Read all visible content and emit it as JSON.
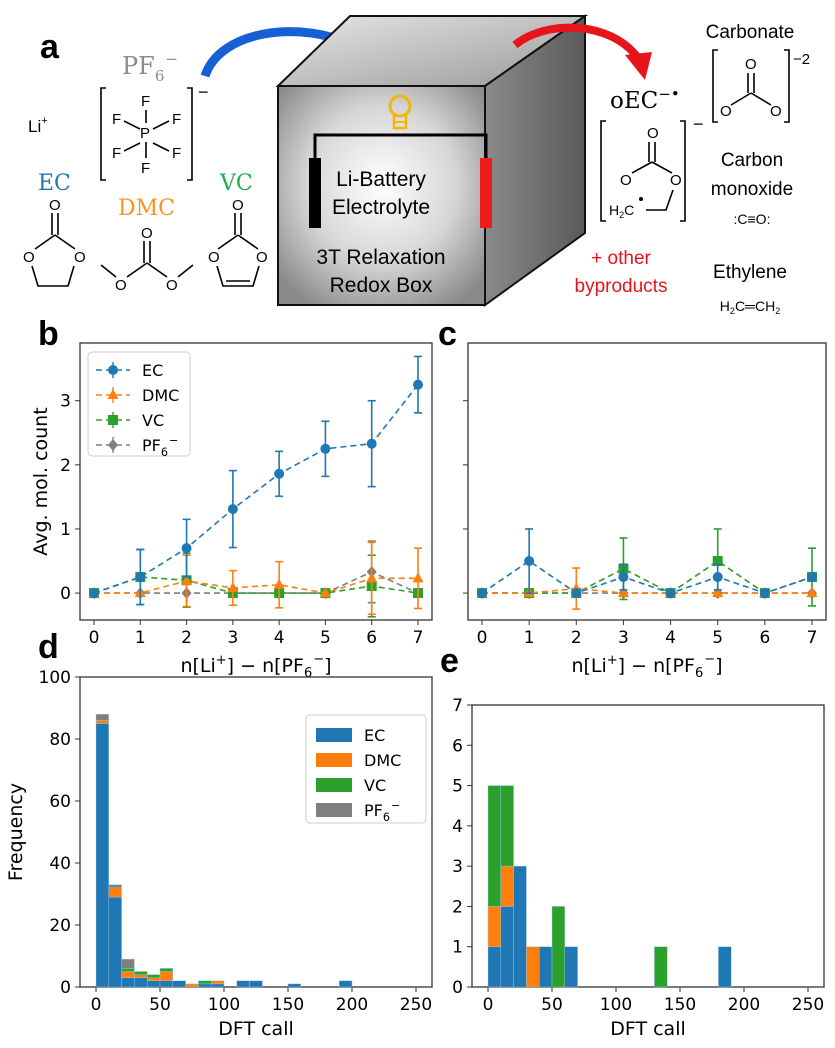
{
  "panel_labels": {
    "a": "a",
    "b": "b",
    "c": "c",
    "d": "d",
    "e": "e"
  },
  "schematic": {
    "pf6_label": {
      "base": "PF",
      "sub": "6",
      "sup": "−"
    },
    "li_label": {
      "base": "Li",
      "sup": "+"
    },
    "pf6_atoms": {
      "center": "P",
      "ligand": "F",
      "charge": "−"
    },
    "ec_label": "EC",
    "dmc_label": "DMC",
    "vc_label": "VC",
    "oxygen": "O",
    "box_line1": "Li-Battery",
    "box_line2": "Electrolyte",
    "box_line3": "3T Relaxation",
    "box_line4": "Redox Box",
    "oec_label": "oEC",
    "oec_sup": "−•",
    "oec_h2c": {
      "base": "H",
      "sub": "2",
      "tail": "C"
    },
    "oec_charge": "−",
    "carbonate_label": "Carbonate",
    "carbonate_charge": "−2",
    "co_line1": "Carbon",
    "co_line2": "monoxide",
    "co_formula": ":C≡O:",
    "other_line1": "+ other",
    "other_line2": "byproducts",
    "ethylene_label": "Ethylene",
    "ethylene_formula": {
      "a": "H",
      "a_sub": "2",
      "b": "C═CH",
      "b_sub": "2"
    },
    "colors": {
      "EC": "#1f77b4",
      "DMC": "#f7941d",
      "VC": "#1fae4b",
      "PF6": "#8c8c8c",
      "blue_arrow": "#1560d6",
      "red_arrow": "#e8141c",
      "battery_red": "#ee1c1c",
      "bulb": "#f2b705"
    }
  },
  "chart_data": [
    {
      "id": "b",
      "type": "line",
      "error_bars": true,
      "x": [
        0,
        1,
        2,
        3,
        4,
        5,
        6,
        7
      ],
      "xticks": [
        "0",
        "1",
        "2",
        "3",
        "4",
        "5",
        "6",
        "7"
      ],
      "yticks": [
        "0",
        "1",
        "2",
        "3"
      ],
      "ylim": [
        -0.42,
        3.9
      ],
      "xlabel": {
        "a": "n[Li",
        "a_sup": "+",
        "b": "] − n[PF",
        "b_sub": "6",
        "b_sup": "−",
        "c": "]"
      },
      "ylabel": "Avg. mol. count",
      "legend": "top-left",
      "series": [
        {
          "name": "EC",
          "marker": "circle",
          "color": "#1f77b4",
          "values": [
            0,
            0.25,
            0.7,
            1.31,
            1.86,
            2.25,
            2.33,
            3.25
          ],
          "errors": [
            0,
            0.43,
            0.45,
            0.6,
            0.35,
            0.43,
            0.67,
            0.44
          ]
        },
        {
          "name": "DMC",
          "marker": "triangle",
          "color": "#ff7f0e",
          "values": [
            0,
            0,
            0.19,
            0.08,
            0.13,
            0,
            0.23,
            0.23
          ],
          "errors": [
            0,
            0,
            0.4,
            0.27,
            0.36,
            0,
            0.56,
            0.47
          ]
        },
        {
          "name": "VC",
          "marker": "square",
          "color": "#2ca02c",
          "values": [
            0,
            0.25,
            0.2,
            0,
            0,
            0,
            0.11,
            0
          ],
          "errors": [
            0,
            0.43,
            0.42,
            0,
            0,
            0,
            0.48,
            0
          ]
        },
        {
          "name": "PF",
          "name_sub": "6",
          "name_sup": "−",
          "marker": "diamond",
          "color": "#7f7f7f",
          "values": [
            0,
            0,
            0,
            0,
            0,
            0,
            0.33,
            0
          ],
          "errors": [
            0,
            0,
            0,
            0,
            0,
            0,
            0.48,
            0
          ]
        }
      ]
    },
    {
      "id": "c",
      "type": "line",
      "error_bars": true,
      "x": [
        0,
        1,
        2,
        3,
        4,
        5,
        6,
        7
      ],
      "xticks": [
        "0",
        "1",
        "2",
        "3",
        "4",
        "5",
        "6",
        "7"
      ],
      "ylim": [
        -0.42,
        3.9
      ],
      "xlabel": {
        "a": "n[Li",
        "a_sup": "+",
        "b": "] − n[PF",
        "b_sub": "6",
        "b_sup": "−",
        "c": "]"
      },
      "series": [
        {
          "name": "EC",
          "marker": "circle",
          "color": "#1f77b4",
          "values": [
            0,
            0.5,
            0,
            0.25,
            0,
            0.25,
            0,
            0.25
          ],
          "errors": [
            0,
            0.5,
            0,
            0.2,
            0,
            0.2,
            0,
            0
          ]
        },
        {
          "name": "DMC",
          "marker": "triangle",
          "color": "#ff7f0e",
          "values": [
            0,
            0,
            0.07,
            0,
            0,
            0,
            0,
            0
          ],
          "errors": [
            0,
            0,
            0.32,
            0,
            0,
            0,
            0,
            0
          ]
        },
        {
          "name": "VC",
          "marker": "square",
          "color": "#2ca02c",
          "values": [
            0,
            0,
            0,
            0.38,
            0,
            0.5,
            0,
            0.25
          ],
          "errors": [
            0,
            0,
            0,
            0.48,
            0,
            0.5,
            0,
            0.45
          ]
        },
        {
          "name": "PF6",
          "marker": "diamond",
          "color": "#7f7f7f",
          "values": [
            0,
            0,
            0,
            0,
            0,
            0,
            0,
            0
          ],
          "errors": [
            0,
            0,
            0,
            0,
            0,
            0,
            0,
            0
          ]
        }
      ]
    },
    {
      "id": "d",
      "type": "bar",
      "stacked": true,
      "bin_width": 10,
      "bin_starts": [
        0,
        10,
        20,
        30,
        40,
        50,
        60,
        70,
        80,
        90,
        100,
        110,
        120,
        130,
        140,
        150,
        160,
        170,
        180,
        190
      ],
      "xticks": [
        "0",
        "50",
        "100",
        "150",
        "200",
        "250"
      ],
      "xlim": [
        -12.5,
        262.5
      ],
      "yticks": [
        "0",
        "20",
        "40",
        "60",
        "80",
        "100"
      ],
      "ylim": [
        0,
        100
      ],
      "xlabel": "DFT call",
      "ylabel": "Frequency",
      "legend": "top-right",
      "series": [
        {
          "name": "EC",
          "color": "#1f77b4",
          "values": [
            85,
            29,
            3,
            3,
            2,
            2,
            2,
            0,
            1,
            1,
            0,
            2,
            2,
            0,
            0,
            1,
            0,
            0,
            0,
            2
          ]
        },
        {
          "name": "DMC",
          "color": "#ff7f0e",
          "values": [
            1,
            3,
            2,
            1,
            1,
            3,
            0,
            1,
            0,
            1,
            0,
            0,
            0,
            0,
            0,
            0,
            0,
            0,
            0,
            0
          ]
        },
        {
          "name": "VC",
          "color": "#2ca02c",
          "values": [
            0,
            0,
            1,
            1,
            1,
            1,
            0,
            0,
            1,
            0,
            0,
            0,
            0,
            0,
            0,
            0,
            0,
            0,
            0,
            0
          ]
        },
        {
          "name": "PF",
          "name_sub": "6",
          "name_sup": "−",
          "color": "#7f7f7f",
          "values": [
            2,
            1,
            3,
            0,
            0,
            0,
            0,
            0,
            0,
            0,
            0,
            0,
            0,
            0,
            0,
            0,
            0,
            0,
            0,
            0
          ]
        }
      ]
    },
    {
      "id": "e",
      "type": "bar",
      "stacked": true,
      "bin_width": 10,
      "bin_starts": [
        0,
        10,
        20,
        30,
        40,
        50,
        60,
        70,
        80,
        90,
        100,
        110,
        120,
        130,
        140,
        150,
        160,
        170,
        180,
        190
      ],
      "xticks": [
        "0",
        "50",
        "100",
        "150",
        "200",
        "250"
      ],
      "xlim": [
        -12.5,
        262.5
      ],
      "yticks": [
        "0",
        "1",
        "2",
        "3",
        "4",
        "5",
        "6",
        "7"
      ],
      "ylim": [
        0,
        7
      ],
      "xlabel": "DFT call",
      "series": [
        {
          "name": "EC",
          "color": "#1f77b4",
          "values": [
            1,
            2,
            3,
            0,
            1,
            0,
            1,
            0,
            0,
            0,
            0,
            0,
            0,
            0,
            0,
            0,
            0,
            0,
            1,
            0
          ]
        },
        {
          "name": "DMC",
          "color": "#ff7f0e",
          "values": [
            1,
            1,
            0,
            1,
            0,
            0,
            0,
            0,
            0,
            0,
            0,
            0,
            0,
            0,
            0,
            0,
            0,
            0,
            0,
            0
          ]
        },
        {
          "name": "VC",
          "color": "#2ca02c",
          "values": [
            3,
            2,
            0,
            0,
            0,
            2,
            0,
            0,
            0,
            0,
            0,
            0,
            0,
            1,
            0,
            0,
            0,
            0,
            0,
            0
          ]
        },
        {
          "name": "PF6",
          "color": "#7f7f7f",
          "values": [
            0,
            0,
            0,
            0,
            0,
            0,
            0,
            0,
            0,
            0,
            0,
            0,
            0,
            0,
            0,
            0,
            0,
            0,
            0,
            0
          ]
        }
      ]
    }
  ]
}
